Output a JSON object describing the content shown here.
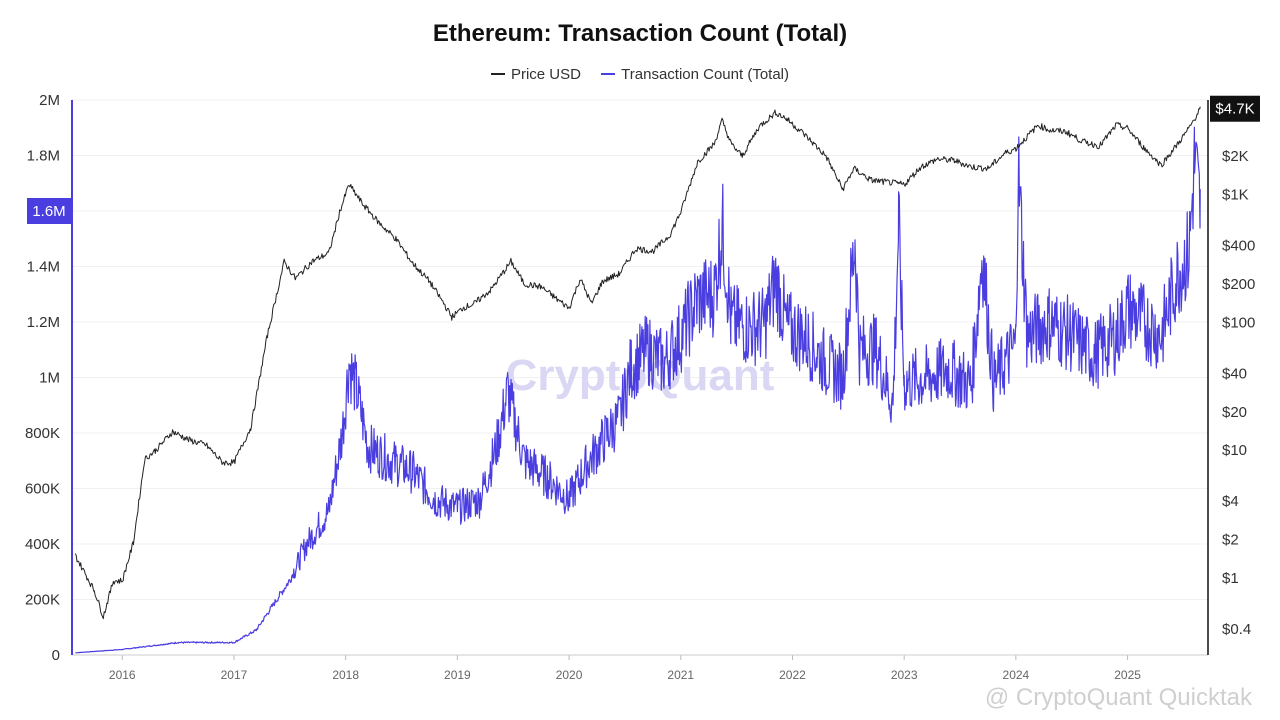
{
  "colors": {
    "price": "#222222",
    "tx": "#4a3ee0",
    "badge_dark": "#111111",
    "grid": "#f0f0f0"
  },
  "watermark": "CryptoQuant",
  "credit": "@ CryptoQuant Quicktak",
  "chart_data": {
    "type": "line",
    "title": "Ethereum: Transaction Count (Total)",
    "legend_position": "top-center",
    "grid": true,
    "series": [
      {
        "name": "Price USD",
        "axis": "right",
        "scale": "log",
        "x": [
          2015.58,
          2015.75,
          2015.83,
          2015.92,
          2016.0,
          2016.1,
          2016.2,
          2016.3,
          2016.45,
          2016.6,
          2016.75,
          2016.9,
          2017.0,
          2017.15,
          2017.3,
          2017.45,
          2017.55,
          2017.7,
          2017.85,
          2017.95,
          2018.03,
          2018.15,
          2018.3,
          2018.45,
          2018.6,
          2018.75,
          2018.88,
          2018.95,
          2019.05,
          2019.15,
          2019.3,
          2019.48,
          2019.6,
          2019.75,
          2019.9,
          2020.0,
          2020.1,
          2020.2,
          2020.3,
          2020.45,
          2020.6,
          2020.75,
          2020.9,
          2021.0,
          2021.15,
          2021.3,
          2021.37,
          2021.45,
          2021.55,
          2021.7,
          2021.85,
          2021.95,
          2022.1,
          2022.3,
          2022.45,
          2022.55,
          2022.7,
          2022.85,
          2023.0,
          2023.15,
          2023.3,
          2023.45,
          2023.6,
          2023.75,
          2023.9,
          2024.0,
          2024.2,
          2024.3,
          2024.45,
          2024.6,
          2024.75,
          2024.9,
          2025.0,
          2025.15,
          2025.3,
          2025.45,
          2025.55,
          2025.65
        ],
        "values": [
          1.5,
          0.8,
          0.5,
          0.95,
          0.95,
          1.9,
          8.5,
          10,
          14,
          12,
          11,
          8,
          8,
          15,
          80,
          300,
          220,
          300,
          350,
          750,
          1200,
          850,
          600,
          450,
          290,
          210,
          140,
          110,
          130,
          140,
          180,
          300,
          200,
          190,
          150,
          130,
          220,
          140,
          210,
          240,
          380,
          360,
          480,
          730,
          1800,
          2500,
          3800,
          2500,
          2000,
          3400,
          4400,
          3900,
          3000,
          2000,
          1100,
          1600,
          1300,
          1250,
          1200,
          1650,
          1900,
          1850,
          1650,
          1600,
          2100,
          2300,
          3500,
          3200,
          3100,
          2600,
          2400,
          3500,
          3300,
          2300,
          1700,
          2500,
          3300,
          4700
        ]
      },
      {
        "name": "Transaction Count (Total)",
        "axis": "left",
        "x": [
          2015.58,
          2016.0,
          2016.5,
          2017.0,
          2017.2,
          2017.35,
          2017.5,
          2017.65,
          2017.85,
          2017.97,
          2018.03,
          2018.1,
          2018.2,
          2018.4,
          2018.6,
          2018.8,
          2019.0,
          2019.2,
          2019.35,
          2019.45,
          2019.6,
          2019.8,
          2020.0,
          2020.15,
          2020.25,
          2020.35,
          2020.45,
          2020.55,
          2020.7,
          2020.85,
          2021.0,
          2021.15,
          2021.3,
          2021.37,
          2021.45,
          2021.6,
          2021.75,
          2021.85,
          2021.95,
          2022.1,
          2022.3,
          2022.45,
          2022.56,
          2022.6,
          2022.75,
          2022.9,
          2022.95,
          2023.0,
          2023.2,
          2023.4,
          2023.6,
          2023.7,
          2023.8,
          2024.0,
          2024.02,
          2024.1,
          2024.3,
          2024.5,
          2024.7,
          2024.9,
          2025.0,
          2025.15,
          2025.3,
          2025.45,
          2025.55,
          2025.6,
          2025.65
        ],
        "values": [
          8000,
          20000,
          45000,
          45000,
          90000,
          180000,
          270000,
          400000,
          520000,
          800000,
          1050000,
          950000,
          750000,
          700000,
          660000,
          560000,
          530000,
          560000,
          750000,
          950000,
          700000,
          640000,
          560000,
          680000,
          740000,
          800000,
          850000,
          1030000,
          1100000,
          1050000,
          1150000,
          1280000,
          1300000,
          1550000,
          1200000,
          1180000,
          1190000,
          1350000,
          1180000,
          1150000,
          1050000,
          1000000,
          1500000,
          1100000,
          1100000,
          900000,
          1550000,
          980000,
          1000000,
          1030000,
          970000,
          1450000,
          980000,
          1120000,
          1760000,
          1150000,
          1200000,
          1150000,
          1080000,
          1150000,
          1250000,
          1200000,
          1150000,
          1380000,
          1450000,
          1780000,
          1600000
        ]
      }
    ],
    "x_ticks": [
      "2016",
      "2017",
      "2018",
      "2019",
      "2020",
      "2021",
      "2022",
      "2023",
      "2024",
      "2025"
    ],
    "left_ticks": [
      "0",
      "200K",
      "400K",
      "600K",
      "800K",
      "1M",
      "1.2M",
      "1.4M",
      "1.6M",
      "1.8M",
      "2M"
    ],
    "right_ticks": [
      "$0.4",
      "$1",
      "$2",
      "$4",
      "$10",
      "$20",
      "$40",
      "$100",
      "$200",
      "$400",
      "$1K",
      "$2K"
    ],
    "right_tick_values": [
      0.4,
      1,
      2,
      4,
      10,
      20,
      40,
      100,
      200,
      400,
      1000,
      2000
    ],
    "ylim_left": [
      0,
      2000000
    ],
    "ylim_right": [
      0.25,
      5500
    ],
    "xlim": [
      2015.55,
      2025.72
    ],
    "current_left_label": "1.6M",
    "current_left_value": 1600000,
    "current_right_label": "$4.7K",
    "current_right_value": 4700
  }
}
